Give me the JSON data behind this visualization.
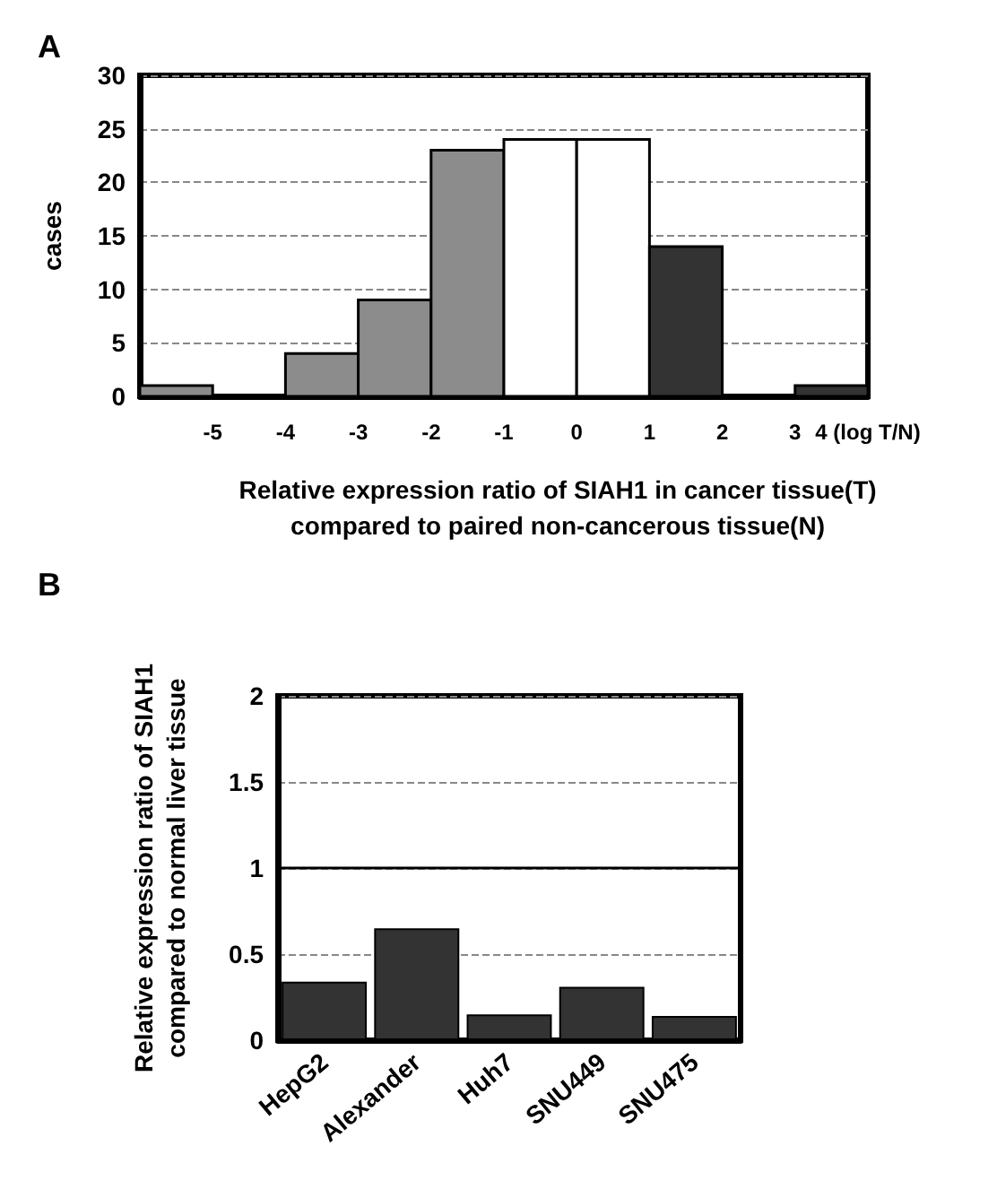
{
  "chart_data": [
    {
      "type": "histogram",
      "title": "A",
      "ylabel": "cases",
      "xlabel": "Relative expression ratio of SIAH1 in cancer tissue(T)\ncompared to paired non-cancerous tissue(N)",
      "bins": [
        -6,
        -5,
        -4,
        -3,
        -2,
        -1,
        0,
        1,
        2,
        3,
        4
      ],
      "values": [
        1,
        0,
        4,
        9,
        23,
        24,
        24,
        14,
        0,
        1
      ],
      "colors": [
        "#8c8c8c",
        "#ffffff",
        "#8c8c8c",
        "#8c8c8c",
        "#8c8c8c",
        "#ffffff",
        "#ffffff",
        "#333333",
        "#ffffff",
        "#333333"
      ],
      "xlim": [
        -6,
        4
      ],
      "xticks": [
        -5,
        -4,
        -3,
        -2,
        -1,
        0,
        1,
        2,
        3,
        {
          "value": 4,
          "label": "4 (log T/N)"
        }
      ],
      "ylim": [
        0,
        30
      ],
      "yticks": [
        0,
        5,
        10,
        15,
        20,
        25,
        30
      ],
      "grid": "y"
    },
    {
      "type": "bar",
      "title": "B",
      "ylabel": "Relative expression ratio of SIAH1\ncompared to normal liver tissue",
      "categories": [
        "HepG2",
        "Alexander",
        "Huh7",
        "SNU449",
        "SNU475"
      ],
      "values": [
        0.34,
        0.65,
        0.15,
        0.31,
        0.14
      ],
      "color": "#333333",
      "ylim": [
        0,
        2
      ],
      "yticks": [
        0,
        0.5,
        1,
        1.5,
        2
      ],
      "grid": "y",
      "ref_lines": [
        {
          "axis": "y",
          "value": 1,
          "color": "#000000",
          "line_style": "solid"
        }
      ]
    }
  ]
}
